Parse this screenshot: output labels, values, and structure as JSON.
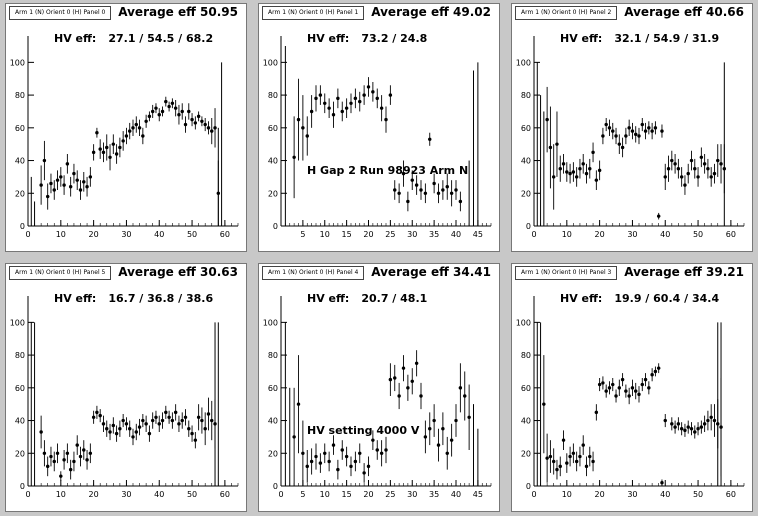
{
  "chart_data": [
    {
      "type": "scatter",
      "panel_label": "Arm 1 (N) Orient 0 (H) Panel 0",
      "title": "Average eff 50.95",
      "hv_label": "HV eff:",
      "hv_values": "27.1 / 54.5 / 68.2",
      "note": "",
      "xlim": [
        0,
        64
      ],
      "ylim": [
        0,
        110
      ],
      "xticks": [
        0,
        10,
        20,
        30,
        40,
        50,
        60
      ],
      "yticks": [
        0,
        20,
        40,
        60,
        80,
        100
      ],
      "x": [
        4,
        5,
        6,
        7,
        8,
        9,
        10,
        11,
        12,
        13,
        14,
        15,
        16,
        17,
        18,
        19,
        20,
        21,
        22,
        23,
        24,
        25,
        26,
        27,
        28,
        29,
        30,
        31,
        32,
        33,
        34,
        35,
        36,
        37,
        38,
        39,
        40,
        41,
        42,
        43,
        44,
        45,
        46,
        47,
        48,
        49,
        50,
        51,
        52,
        53,
        54,
        55,
        56,
        57,
        58
      ],
      "y": [
        25,
        40,
        18,
        26,
        22,
        28,
        30,
        25,
        38,
        24,
        32,
        28,
        22,
        27,
        24,
        30,
        45,
        57,
        47,
        45,
        48,
        42,
        50,
        44,
        48,
        52,
        55,
        58,
        60,
        62,
        60,
        55,
        64,
        67,
        70,
        72,
        68,
        70,
        76,
        73,
        75,
        72,
        68,
        70,
        62,
        70,
        65,
        63,
        67,
        64,
        62,
        60,
        58,
        60,
        20
      ],
      "err": [
        12,
        12,
        8,
        6,
        6,
        6,
        6,
        6,
        6,
        6,
        6,
        6,
        6,
        6,
        6,
        6,
        5,
        3,
        6,
        6,
        8,
        8,
        6,
        6,
        6,
        6,
        5,
        5,
        5,
        5,
        5,
        5,
        4,
        3,
        4,
        3,
        4,
        3,
        3,
        3,
        3,
        5,
        6,
        5,
        5,
        5,
        4,
        4,
        3,
        3,
        4,
        4,
        8,
        12,
        20
      ],
      "empty_bars": [
        [
          1,
          0,
          30
        ],
        [
          2,
          0,
          15
        ],
        [
          58,
          0,
          60
        ],
        [
          59,
          0,
          100
        ]
      ]
    },
    {
      "type": "scatter",
      "panel_label": "Arm 1 (N) Orient 0 (H) Panel 1",
      "title": "Average eff 49.02",
      "hv_label": "HV eff:",
      "hv_values": "73.2 / 24.8",
      "note": "H Gap 2 Run 98923 Arm N",
      "xlim": [
        0,
        48
      ],
      "ylim": [
        0,
        110
      ],
      "xticks": [
        5,
        10,
        15,
        20,
        25,
        30,
        35,
        40,
        45
      ],
      "yticks": [
        0,
        20,
        40,
        60,
        80,
        100
      ],
      "x": [
        3,
        4,
        5,
        6,
        7,
        8,
        9,
        10,
        11,
        12,
        13,
        14,
        15,
        16,
        17,
        18,
        19,
        20,
        21,
        22,
        23,
        24,
        25,
        26,
        27,
        28,
        29,
        30,
        31,
        32,
        33,
        34,
        35,
        36,
        37,
        38,
        39,
        40,
        41
      ],
      "y": [
        42,
        65,
        60,
        55,
        70,
        78,
        80,
        75,
        72,
        68,
        78,
        70,
        72,
        75,
        78,
        76,
        80,
        85,
        82,
        78,
        72,
        65,
        80,
        22,
        20,
        32,
        15,
        28,
        25,
        22,
        20,
        53,
        26,
        20,
        22,
        24,
        20,
        22,
        15
      ],
      "err": [
        25,
        25,
        20,
        12,
        10,
        8,
        6,
        6,
        6,
        8,
        6,
        6,
        6,
        6,
        6,
        6,
        6,
        6,
        6,
        6,
        8,
        8,
        6,
        6,
        6,
        8,
        6,
        6,
        6,
        6,
        6,
        4,
        6,
        6,
        6,
        8,
        8,
        6,
        6
      ],
      "empty_bars": [
        [
          1,
          0,
          110
        ],
        [
          43,
          0,
          40
        ],
        [
          44,
          0,
          95
        ],
        [
          45,
          0,
          100
        ]
      ]
    },
    {
      "type": "scatter",
      "panel_label": "Arm 1 (N) Orient 0 (H) Panel 2",
      "title": "Average eff 40.66",
      "hv_label": "HV eff:",
      "hv_values": "32.1 / 54.9 / 31.9",
      "note": "",
      "xlim": [
        0,
        64
      ],
      "ylim": [
        0,
        110
      ],
      "xticks": [
        0,
        10,
        20,
        30,
        40,
        50,
        60
      ],
      "yticks": [
        0,
        20,
        40,
        60,
        80,
        100
      ],
      "x": [
        4,
        5,
        6,
        7,
        8,
        9,
        10,
        11,
        12,
        13,
        14,
        15,
        16,
        17,
        18,
        19,
        20,
        21,
        22,
        23,
        24,
        25,
        26,
        27,
        28,
        29,
        30,
        31,
        32,
        33,
        34,
        35,
        36,
        37,
        38,
        39,
        40,
        41,
        42,
        43,
        44,
        45,
        46,
        47,
        48,
        49,
        50,
        51,
        52,
        53,
        54,
        55,
        56,
        57,
        58
      ],
      "y": [
        65,
        48,
        30,
        50,
        35,
        38,
        33,
        32,
        33,
        30,
        35,
        38,
        32,
        35,
        45,
        28,
        34,
        55,
        62,
        60,
        58,
        55,
        50,
        48,
        55,
        60,
        58,
        56,
        55,
        62,
        58,
        60,
        58,
        60,
        6,
        58,
        30,
        35,
        40,
        38,
        35,
        30,
        25,
        32,
        40,
        35,
        30,
        42,
        38,
        35,
        30,
        32,
        40,
        38,
        35
      ],
      "err": [
        20,
        25,
        20,
        20,
        8,
        6,
        6,
        6,
        6,
        6,
        6,
        6,
        6,
        6,
        6,
        6,
        6,
        5,
        4,
        5,
        5,
        5,
        6,
        6,
        5,
        5,
        5,
        5,
        5,
        4,
        5,
        4,
        5,
        4,
        2,
        4,
        8,
        8,
        6,
        6,
        6,
        6,
        6,
        6,
        6,
        6,
        6,
        6,
        6,
        6,
        6,
        6,
        10,
        12,
        15
      ],
      "empty_bars": [
        [
          1,
          0,
          100
        ],
        [
          2,
          0,
          80
        ],
        [
          3,
          0,
          70
        ],
        [
          58,
          0,
          100
        ]
      ]
    },
    {
      "type": "scatter",
      "panel_label": "Arm 1 (N) Orient 0 (H) Panel 5",
      "title": "Average eff 30.63",
      "hv_label": "HV eff:",
      "hv_values": "16.7 / 36.8 / 38.6",
      "note": "",
      "xlim": [
        0,
        64
      ],
      "ylim": [
        0,
        110
      ],
      "xticks": [
        0,
        10,
        20,
        30,
        40,
        50,
        60
      ],
      "yticks": [
        0,
        20,
        40,
        60,
        80,
        100
      ],
      "x": [
        4,
        5,
        6,
        7,
        8,
        9,
        10,
        11,
        12,
        13,
        14,
        15,
        16,
        17,
        18,
        19,
        20,
        21,
        22,
        23,
        24,
        25,
        26,
        27,
        28,
        29,
        30,
        31,
        32,
        33,
        34,
        35,
        36,
        37,
        38,
        39,
        40,
        41,
        42,
        43,
        44,
        45,
        46,
        47,
        48,
        49,
        50,
        51,
        52,
        53,
        54,
        55,
        56,
        57
      ],
      "y": [
        33,
        20,
        12,
        18,
        15,
        20,
        6,
        16,
        20,
        10,
        15,
        25,
        18,
        22,
        16,
        20,
        42,
        45,
        43,
        38,
        35,
        33,
        37,
        32,
        35,
        40,
        38,
        35,
        30,
        33,
        36,
        40,
        38,
        32,
        40,
        42,
        38,
        40,
        45,
        42,
        40,
        45,
        38,
        40,
        42,
        35,
        32,
        28,
        42,
        40,
        35,
        44,
        40,
        38
      ],
      "err": [
        10,
        8,
        6,
        6,
        6,
        6,
        3,
        6,
        6,
        6,
        6,
        6,
        6,
        6,
        6,
        6,
        4,
        4,
        4,
        5,
        5,
        5,
        5,
        5,
        5,
        4,
        4,
        5,
        5,
        5,
        5,
        4,
        5,
        5,
        5,
        4,
        5,
        5,
        4,
        4,
        5,
        5,
        5,
        5,
        5,
        5,
        5,
        5,
        8,
        8,
        10,
        10,
        12,
        15
      ],
      "empty_bars": [
        [
          1,
          0,
          100
        ],
        [
          2,
          0,
          100
        ],
        [
          57,
          0,
          100
        ],
        [
          58,
          0,
          100
        ]
      ]
    },
    {
      "type": "scatter",
      "panel_label": "Arm 1 (N) Orient 0 (H) Panel 4",
      "title": "Average eff 34.41",
      "hv_label": "HV eff:",
      "hv_values": "20.7 / 48.1",
      "note": "HV setting 4000 V",
      "xlim": [
        0,
        48
      ],
      "ylim": [
        0,
        110
      ],
      "xticks": [
        0,
        5,
        10,
        15,
        20,
        25,
        30,
        35,
        40,
        45
      ],
      "yticks": [
        0,
        20,
        40,
        60,
        80,
        100
      ],
      "x": [
        3,
        4,
        5,
        6,
        7,
        8,
        9,
        10,
        11,
        12,
        13,
        14,
        15,
        16,
        17,
        18,
        19,
        20,
        21,
        22,
        23,
        24,
        25,
        26,
        27,
        28,
        29,
        30,
        31,
        32,
        33,
        34,
        35,
        36,
        37,
        38,
        39,
        40,
        41,
        42,
        43
      ],
      "y": [
        30,
        50,
        20,
        12,
        15,
        18,
        14,
        20,
        15,
        25,
        10,
        22,
        18,
        12,
        15,
        20,
        8,
        12,
        28,
        22,
        20,
        22,
        65,
        66,
        55,
        72,
        60,
        64,
        75,
        55,
        30,
        35,
        40,
        25,
        35,
        20,
        28,
        40,
        60,
        55,
        42
      ],
      "err": [
        30,
        30,
        20,
        10,
        8,
        8,
        6,
        6,
        6,
        6,
        6,
        6,
        6,
        6,
        6,
        6,
        6,
        6,
        6,
        6,
        8,
        8,
        10,
        8,
        8,
        8,
        8,
        8,
        8,
        8,
        10,
        10,
        10,
        10,
        10,
        10,
        10,
        10,
        15,
        15,
        20
      ],
      "empty_bars": [
        [
          1,
          0,
          100
        ],
        [
          2,
          0,
          60
        ],
        [
          44,
          0,
          50
        ],
        [
          45,
          0,
          35
        ]
      ]
    },
    {
      "type": "scatter",
      "panel_label": "Arm 1 (N) Orient 0 (H) Panel 3",
      "title": "Average eff 39.21",
      "hv_label": "HV eff:",
      "hv_values": "19.9 / 60.4 / 34.4",
      "note": "",
      "xlim": [
        0,
        64
      ],
      "ylim": [
        0,
        110
      ],
      "xticks": [
        0,
        10,
        20,
        30,
        40,
        50,
        60
      ],
      "yticks": [
        0,
        20,
        40,
        60,
        80,
        100
      ],
      "x": [
        3,
        4,
        5,
        6,
        7,
        8,
        9,
        10,
        11,
        12,
        13,
        14,
        15,
        16,
        17,
        18,
        19,
        20,
        21,
        22,
        23,
        24,
        25,
        26,
        27,
        28,
        29,
        30,
        31,
        32,
        33,
        34,
        35,
        36,
        37,
        38,
        39,
        40,
        42,
        43,
        44,
        45,
        46,
        47,
        48,
        49,
        50,
        51,
        52,
        53,
        54,
        55,
        56,
        57
      ],
      "y": [
        50,
        17,
        18,
        15,
        10,
        12,
        28,
        14,
        18,
        20,
        15,
        18,
        25,
        12,
        18,
        15,
        45,
        62,
        63,
        58,
        60,
        62,
        55,
        60,
        65,
        58,
        55,
        60,
        58,
        56,
        62,
        65,
        60,
        68,
        70,
        72,
        2,
        40,
        38,
        36,
        38,
        35,
        34,
        36,
        35,
        33,
        35,
        36,
        38,
        40,
        42,
        40,
        38,
        36
      ],
      "err": [
        30,
        15,
        10,
        8,
        6,
        6,
        6,
        6,
        6,
        6,
        6,
        6,
        6,
        6,
        6,
        6,
        5,
        4,
        4,
        4,
        4,
        4,
        4,
        5,
        4,
        4,
        5,
        5,
        5,
        5,
        4,
        4,
        4,
        4,
        3,
        3,
        2,
        4,
        4,
        4,
        4,
        4,
        4,
        4,
        4,
        4,
        4,
        4,
        5,
        6,
        8,
        10,
        15,
        30
      ],
      "empty_bars": [
        [
          1,
          0,
          100
        ],
        [
          2,
          0,
          100
        ],
        [
          56,
          0,
          100
        ],
        [
          57,
          0,
          100
        ]
      ]
    }
  ]
}
